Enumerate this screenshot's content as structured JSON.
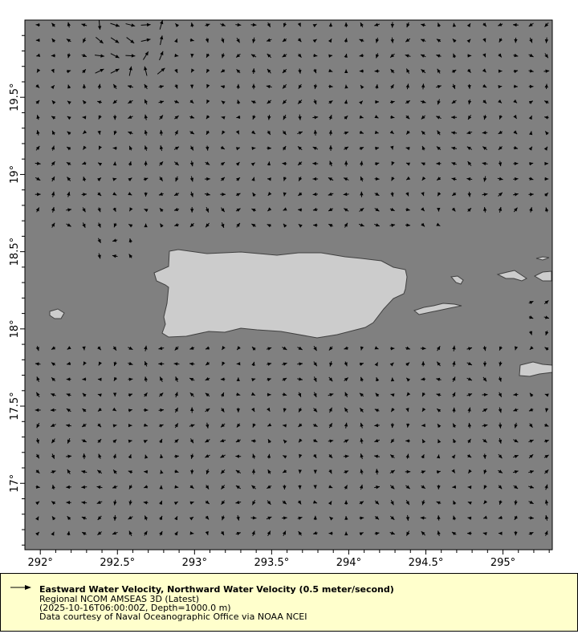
{
  "map": {
    "extent": {
      "lon_min": 291.9,
      "lon_max": 295.32,
      "lat_min": 16.57,
      "lat_max": 20.0
    },
    "x_ticks": [
      {
        "lon": 292,
        "label": "292°"
      },
      {
        "lon": 292.5,
        "label": "292.5°"
      },
      {
        "lon": 293,
        "label": "293°"
      },
      {
        "lon": 293.5,
        "label": "293.5°"
      },
      {
        "lon": 294,
        "label": "294°"
      },
      {
        "lon": 294.5,
        "label": "294.5°"
      },
      {
        "lon": 295,
        "label": "295°"
      }
    ],
    "y_ticks": [
      {
        "lat": 19.5,
        "label": "19.5°"
      },
      {
        "lat": 19,
        "label": "19°"
      },
      {
        "lat": 18.5,
        "label": "18.5°"
      },
      {
        "lat": 18,
        "label": "18°"
      },
      {
        "lat": 17.5,
        "label": "17.5°"
      },
      {
        "lat": 17,
        "label": "17°"
      }
    ],
    "colors": {
      "ocean": "#808080",
      "land": "#cccccc",
      "coast": "#404040",
      "arrow": "#000000"
    }
  },
  "legend": {
    "title": "Eastward Water Velocity, Northward Water Velocity (0.5 meter/second)",
    "dataset": "Regional NCOM AMSEAS 3D (Latest)",
    "constraints": "(2025-10-16T06:00:00Z, Depth=1000.0 m)",
    "credit": "Data courtesy of Naval Oceanographic Office via NOAA NCEI",
    "background": "#ffffcc"
  }
}
